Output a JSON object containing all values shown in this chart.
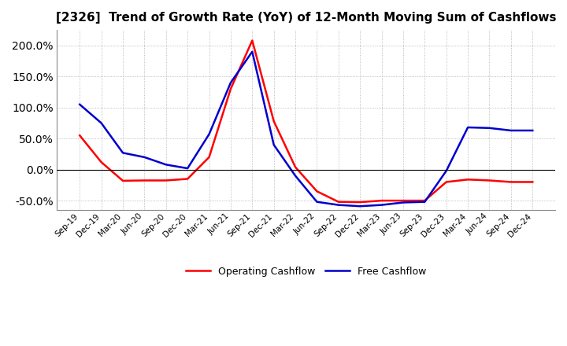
{
  "title": "[2326]  Trend of Growth Rate (YoY) of 12-Month Moving Sum of Cashflows",
  "x_labels": [
    "Sep-19",
    "Dec-19",
    "Mar-20",
    "Jun-20",
    "Sep-20",
    "Dec-20",
    "Mar-21",
    "Jun-21",
    "Sep-21",
    "Dec-21",
    "Mar-22",
    "Jun-22",
    "Sep-22",
    "Dec-22",
    "Mar-23",
    "Jun-23",
    "Sep-23",
    "Dec-23",
    "Mar-24",
    "Jun-24",
    "Sep-24",
    "Dec-24"
  ],
  "operating_cashflow": [
    0.55,
    0.12,
    -0.18,
    -0.175,
    -0.175,
    -0.15,
    0.2,
    1.3,
    2.08,
    0.78,
    0.04,
    -0.35,
    -0.52,
    -0.525,
    -0.5,
    -0.5,
    -0.5,
    -0.2,
    -0.16,
    -0.175,
    -0.2,
    -0.2
  ],
  "free_cashflow": [
    1.05,
    0.75,
    0.27,
    0.2,
    0.08,
    0.02,
    0.57,
    1.4,
    1.9,
    0.4,
    -0.1,
    -0.52,
    -0.57,
    -0.59,
    -0.57,
    -0.53,
    -0.52,
    -0.02,
    0.68,
    0.67,
    0.63,
    0.63
  ],
  "operating_color": "#ff0000",
  "free_color": "#0000cc",
  "ylim_low": -0.65,
  "ylim_high": 2.25,
  "yticks": [
    -0.5,
    0.0,
    0.5,
    1.0,
    1.5,
    2.0
  ],
  "background_color": "#ffffff",
  "grid_color": "#aaaaaa",
  "legend_labels": [
    "Operating Cashflow",
    "Free Cashflow"
  ]
}
